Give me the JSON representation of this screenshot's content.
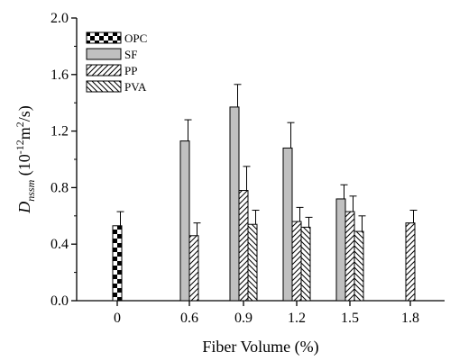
{
  "chart_data": {
    "type": "bar",
    "title": "",
    "xlabel": "Fiber Volume (%)",
    "ylabel": {
      "symbol": "D",
      "subscript": "nssm",
      "unit_open": " (10",
      "unit_exp": "-12",
      "unit_mid": "m",
      "unit_exp2": "2",
      "unit_close": "/s)"
    },
    "ylim": [
      0,
      2.0
    ],
    "yticks": [
      "0.0",
      "0.4",
      "0.8",
      "1.2",
      "1.6",
      "2.0"
    ],
    "categories": [
      "0",
      "0.6",
      "0.9",
      "1.2",
      "1.5",
      "1.8"
    ],
    "legend_position": "top-left",
    "series": [
      {
        "name": "OPC",
        "pattern": "checker",
        "values": [
          0.53,
          null,
          null,
          null,
          null,
          null
        ],
        "errors": [
          0.1,
          null,
          null,
          null,
          null,
          null
        ]
      },
      {
        "name": "SF",
        "pattern": "gray",
        "color": "#c0c0c0",
        "values": [
          null,
          1.13,
          1.37,
          1.08,
          0.72,
          null
        ],
        "errors": [
          null,
          0.15,
          0.16,
          0.18,
          0.1,
          null
        ]
      },
      {
        "name": "PP",
        "pattern": "diag-right",
        "values": [
          null,
          0.46,
          0.78,
          0.56,
          0.63,
          0.55
        ],
        "errors": [
          null,
          0.09,
          0.17,
          0.1,
          0.11,
          0.09
        ]
      },
      {
        "name": "PVA",
        "pattern": "diag-left",
        "values": [
          null,
          null,
          0.54,
          0.52,
          0.49,
          null
        ],
        "errors": [
          null,
          null,
          0.1,
          0.07,
          0.11,
          null
        ]
      }
    ]
  }
}
